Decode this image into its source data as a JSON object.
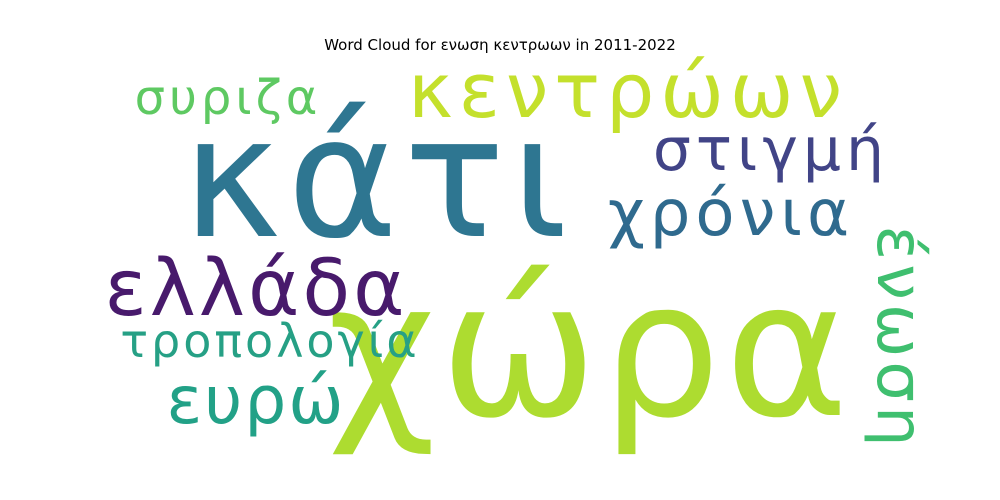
{
  "title": "Word Cloud for ενωση κεντρωων in 2011-2022",
  "words": [
    {
      "text": "κάτι",
      "color": "#2e7691"
    },
    {
      "text": "χώρα",
      "color": "#addc30"
    },
    {
      "text": "κεντρώων",
      "color": "#c4e02c"
    },
    {
      "text": "συριζα",
      "color": "#5ec962"
    },
    {
      "text": "στιγμή",
      "color": "#414487"
    },
    {
      "text": "χρόνια",
      "color": "#2f6a8e"
    },
    {
      "text": "ελλάδα",
      "color": "#481a6c"
    },
    {
      "text": "τροπολογία",
      "color": "#26a085"
    },
    {
      "text": "ευρώ",
      "color": "#22a187"
    },
    {
      "text": "ένωση",
      "color": "#3fbf6f"
    }
  ]
}
